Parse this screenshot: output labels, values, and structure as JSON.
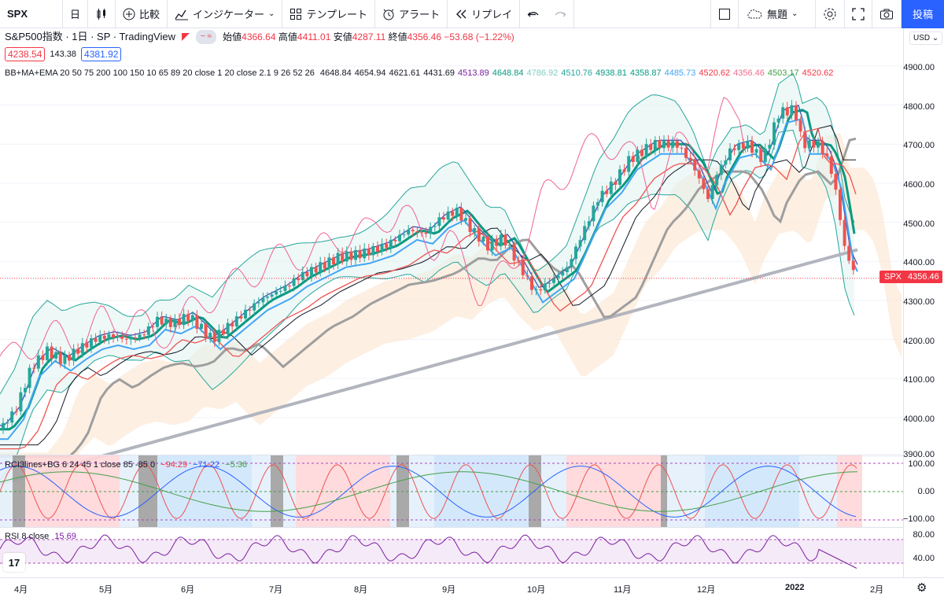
{
  "toolbar": {
    "symbol": "SPX",
    "interval": "日",
    "compare_label": "比較",
    "indicators_label": "インジケーター",
    "templates_label": "テンプレート",
    "alert_label": "アラート",
    "replay_label": "リプレイ",
    "layout_name": "無題",
    "publish_label": "投稿"
  },
  "legend": {
    "title": "S&P500指数 · 1日 · SP · TradingView",
    "open_label": "始値",
    "open": "4366.64",
    "high_label": "高値",
    "high": "4411.01",
    "low_label": "安値",
    "low": "4287.11",
    "close_label": "終値",
    "close": "4356.46",
    "change": "−53.68 (−1.22%)",
    "bid": "4238.54",
    "spread": "143.38",
    "ask": "4381.92",
    "indicator_name": "BB+MA+EMA 20 50 75 200 100 150 10 65 89 20 close 1 20 close 2.1 9 26 52 26",
    "indicator_values": [
      {
        "v": "4648.84",
        "c": "#131722"
      },
      {
        "v": "4654.94",
        "c": "#131722"
      },
      {
        "v": "4621.61",
        "c": "#131722"
      },
      {
        "v": "4431.69",
        "c": "#131722"
      },
      {
        "v": "4513.89",
        "c": "#7b1fa2"
      },
      {
        "v": "4648.84",
        "c": "#089981"
      },
      {
        "v": "4786.92",
        "c": "#80cbc4"
      },
      {
        "v": "4510.76",
        "c": "#26a69a"
      },
      {
        "v": "4938.81",
        "c": "#089981"
      },
      {
        "v": "4358.87",
        "c": "#089981"
      },
      {
        "v": "4485.73",
        "c": "#42a5f5"
      },
      {
        "v": "4520.62",
        "c": "#f23645"
      },
      {
        "v": "4356.46",
        "c": "#ef6c8b"
      },
      {
        "v": "4503.17",
        "c": "#43a047"
      },
      {
        "v": "4520.62",
        "c": "#f23645"
      }
    ]
  },
  "rci": {
    "name": "RCI3lines+BG 6 24 45 1 close 85 -85 0",
    "v1": "−94.29",
    "v2": "−71.22",
    "v3": "−5.36",
    "scale": [
      "100.00",
      "0.00",
      "−100.00"
    ]
  },
  "rsi": {
    "name": "RSI 8 close",
    "value": "15.69",
    "scale": [
      "80.00",
      "40.00"
    ]
  },
  "price_scale": {
    "currency": "USD",
    "labels": [
      "4900.00",
      "4800.00",
      "4700.00",
      "4600.00",
      "4500.00",
      "4400.00",
      "4300.00",
      "4200.00",
      "4100.00",
      "4000.00",
      "3900.00"
    ],
    "current_symbol": "SPX",
    "current_price": "4356.46"
  },
  "time_axis": {
    "labels": [
      "4月",
      "5月",
      "6月",
      "7月",
      "8月",
      "9月",
      "10月",
      "11月",
      "12月",
      "2022",
      "2月"
    ]
  },
  "colors": {
    "up": "#26a69a",
    "down": "#ef5350",
    "accent": "#2962ff"
  }
}
